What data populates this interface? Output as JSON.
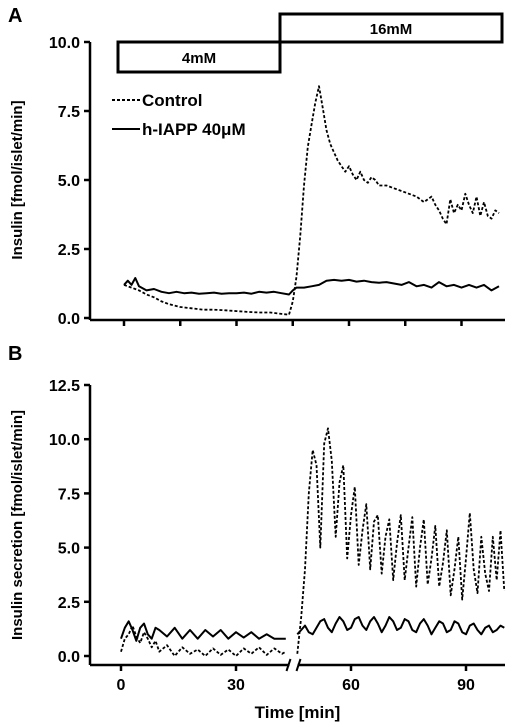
{
  "chart_data": [
    {
      "type": "line",
      "panel_label": "A",
      "ylabel": "Insulin [fmol/islet/min]",
      "xlabel": "",
      "ylim": [
        0,
        10
      ],
      "yticks": [
        "0.0",
        "2.5",
        "5.0",
        "7.5",
        "10.0"
      ],
      "ytick_values": [
        0,
        2.5,
        5,
        7.5,
        10
      ],
      "xlim": [
        -2,
        100
      ],
      "xtick_values": [
        0,
        15,
        30,
        45,
        60,
        75,
        90
      ],
      "glucose_steps": [
        {
          "label": "4mM",
          "x_start": -2,
          "x_end": 43
        },
        {
          "label": "16mM",
          "x_start": 43,
          "x_end": 100
        }
      ],
      "legend": [
        {
          "label": "Control",
          "style": "dotted"
        },
        {
          "label": "h-IAPP 40μM",
          "style": "solid"
        }
      ],
      "series": [
        {
          "name": "Control",
          "style": "dotted",
          "x": [
            0,
            2,
            4,
            6,
            8,
            10,
            12,
            15,
            18,
            21,
            24,
            27,
            30,
            33,
            36,
            39,
            42,
            44,
            45,
            46,
            47,
            48,
            49,
            50,
            51,
            52,
            53,
            54,
            55,
            56,
            57,
            58,
            59,
            60,
            61,
            62,
            63,
            64,
            65,
            66,
            67,
            68,
            70,
            72,
            74,
            76,
            78,
            80,
            82,
            83,
            84,
            85,
            86,
            87,
            88,
            89,
            90,
            91,
            92,
            93,
            94,
            95,
            96,
            97,
            98,
            99,
            100
          ],
          "y": [
            1.2,
            1.1,
            1.0,
            0.85,
            0.75,
            0.6,
            0.5,
            0.4,
            0.35,
            0.3,
            0.3,
            0.28,
            0.25,
            0.22,
            0.2,
            0.2,
            0.15,
            0.12,
            0.6,
            1.5,
            3.0,
            4.8,
            6.2,
            7.0,
            7.8,
            8.4,
            7.6,
            6.8,
            6.3,
            6.0,
            5.7,
            5.5,
            5.3,
            5.5,
            5.2,
            5.0,
            5.3,
            5.0,
            4.9,
            5.1,
            5.0,
            4.8,
            4.8,
            4.7,
            4.6,
            4.5,
            4.4,
            4.2,
            4.4,
            4.1,
            3.9,
            3.6,
            3.4,
            4.3,
            3.8,
            4.1,
            3.9,
            4.5,
            4.1,
            3.8,
            4.4,
            3.7,
            4.2,
            3.7,
            3.6,
            3.9,
            3.8
          ]
        },
        {
          "name": "h-IAPP 40μM",
          "style": "solid",
          "x": [
            0,
            1,
            2,
            3,
            4,
            6,
            8,
            10,
            12,
            14,
            16,
            18,
            20,
            22,
            24,
            26,
            28,
            30,
            32,
            34,
            36,
            38,
            40,
            42,
            44,
            45,
            46,
            48,
            50,
            52,
            54,
            56,
            58,
            60,
            62,
            64,
            66,
            68,
            70,
            72,
            74,
            76,
            78,
            80,
            82,
            84,
            86,
            88,
            90,
            92,
            94,
            96,
            98,
            100
          ],
          "y": [
            1.2,
            1.35,
            1.2,
            1.45,
            1.15,
            1.0,
            1.05,
            0.95,
            0.9,
            0.95,
            0.9,
            0.92,
            0.88,
            0.9,
            0.92,
            0.88,
            0.9,
            0.9,
            0.92,
            0.88,
            0.95,
            0.92,
            0.95,
            0.9,
            0.85,
            1.0,
            1.1,
            1.1,
            1.15,
            1.2,
            1.35,
            1.38,
            1.35,
            1.38,
            1.32,
            1.35,
            1.3,
            1.28,
            1.3,
            1.25,
            1.2,
            1.3,
            1.15,
            1.2,
            1.1,
            1.3,
            1.15,
            1.2,
            1.1,
            1.2,
            1.1,
            1.2,
            1.0,
            1.15
          ]
        }
      ]
    },
    {
      "type": "line",
      "panel_label": "B",
      "ylabel": "Insulin secretion [fmol/islet/min]",
      "xlabel": "Time [min]",
      "ylim": [
        0,
        12.5
      ],
      "yticks": [
        "0.0",
        "2.5",
        "5.0",
        "7.5",
        "10.0",
        "12.5"
      ],
      "ytick_values": [
        0,
        2.5,
        5,
        7.5,
        10,
        12.5
      ],
      "xlim": [
        -5,
        100
      ],
      "xticks": [
        "0",
        "30",
        "60",
        "90"
      ],
      "xtick_values": [
        0,
        30,
        60,
        90
      ],
      "axis_break": 45,
      "series": [
        {
          "name": "Control",
          "style": "dotted",
          "segments": 2,
          "segment1": {
            "x": [
              0,
              1,
              2,
              3,
              4,
              5,
              6,
              7,
              8,
              9,
              10,
              12,
              14,
              16,
              18,
              20,
              22,
              24,
              26,
              28,
              30,
              32,
              34,
              36,
              38,
              40,
              42,
              43
            ],
            "y": [
              0.2,
              0.8,
              1.0,
              1.4,
              0.9,
              0.6,
              1.1,
              0.8,
              0.4,
              0.7,
              0.2,
              0.5,
              0.0,
              0.4,
              0.1,
              0.3,
              0.0,
              0.35,
              0.05,
              0.3,
              0.0,
              0.35,
              0.1,
              0.4,
              0.05,
              0.35,
              0.1,
              0.2
            ]
          },
          "segment2": {
            "x": [
              46,
              47,
              48,
              49,
              50,
              51,
              52,
              53,
              54,
              55,
              56,
              57,
              58,
              59,
              60,
              61,
              62,
              63,
              64,
              65,
              66,
              67,
              68,
              69,
              70,
              71,
              72,
              73,
              74,
              75,
              76,
              77,
              78,
              79,
              80,
              81,
              82,
              83,
              84,
              85,
              86,
              87,
              88,
              89,
              90,
              91,
              92,
              93,
              94,
              95,
              96,
              97,
              98,
              99,
              100
            ],
            "y": [
              0.1,
              1.8,
              4.0,
              7.5,
              9.5,
              8.8,
              5.0,
              9.8,
              10.5,
              9.0,
              5.5,
              8.0,
              8.8,
              4.5,
              6.5,
              7.8,
              4.2,
              5.8,
              7.0,
              4.0,
              6.2,
              6.5,
              3.8,
              5.5,
              6.3,
              3.5,
              5.2,
              6.5,
              3.5,
              5.0,
              6.4,
              3.2,
              5.0,
              6.3,
              3.3,
              4.5,
              6.0,
              3.2,
              4.3,
              5.8,
              2.8,
              4.0,
              5.5,
              2.6,
              4.5,
              6.6,
              4.0,
              2.9,
              5.5,
              3.8,
              3.0,
              5.5,
              3.5,
              5.8,
              3.0
            ]
          }
        },
        {
          "name": "h-IAPP 40μM",
          "style": "solid",
          "segments": 2,
          "segment1": {
            "x": [
              0,
              1,
              2,
              3,
              4,
              5,
              6,
              7,
              8,
              9,
              10,
              12,
              14,
              16,
              18,
              20,
              22,
              24,
              26,
              28,
              30,
              32,
              34,
              36,
              38,
              40,
              42,
              43
            ],
            "y": [
              0.8,
              1.3,
              1.6,
              1.2,
              0.7,
              1.3,
              1.5,
              1.0,
              0.8,
              1.3,
              1.2,
              0.9,
              1.3,
              0.8,
              1.2,
              0.8,
              1.2,
              0.9,
              1.2,
              0.8,
              1.1,
              0.85,
              1.1,
              0.8,
              1.0,
              0.8,
              0.8,
              0.8
            ]
          },
          "segment2": {
            "x": [
              46,
              47,
              48,
              49,
              50,
              51,
              52,
              53,
              54,
              55,
              56,
              57,
              58,
              59,
              60,
              61,
              62,
              63,
              64,
              65,
              66,
              67,
              68,
              69,
              70,
              71,
              72,
              73,
              74,
              75,
              76,
              77,
              78,
              79,
              80,
              81,
              82,
              83,
              84,
              85,
              86,
              87,
              88,
              89,
              90,
              91,
              92,
              93,
              94,
              95,
              96,
              97,
              98,
              99,
              100
            ],
            "y": [
              1.0,
              1.2,
              1.4,
              1.1,
              1.0,
              1.3,
              1.6,
              1.7,
              1.3,
              1.1,
              1.5,
              1.8,
              1.6,
              1.2,
              1.3,
              1.7,
              1.8,
              1.4,
              1.2,
              1.6,
              1.8,
              1.5,
              1.1,
              1.4,
              1.8,
              1.6,
              1.2,
              1.3,
              1.7,
              1.6,
              1.2,
              1.1,
              1.5,
              1.7,
              1.4,
              1.0,
              1.3,
              1.6,
              1.5,
              1.1,
              1.2,
              1.6,
              1.5,
              1.1,
              1.0,
              1.4,
              1.5,
              1.2,
              1.0,
              1.3,
              1.4,
              1.1,
              1.2,
              1.4,
              1.3
            ]
          }
        }
      ]
    }
  ]
}
